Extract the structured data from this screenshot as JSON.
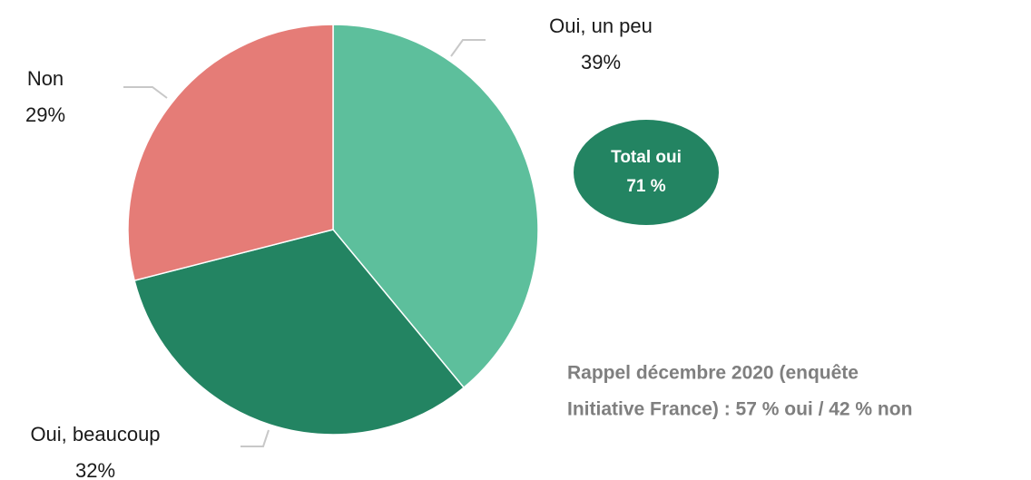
{
  "chart_data": {
    "type": "pie",
    "categories": [
      "Oui, un peu",
      "Oui, beaucoup",
      "Non"
    ],
    "values": [
      39,
      32,
      29
    ],
    "value_labels": [
      "39%",
      "32%",
      "29%"
    ],
    "colors": [
      "#5dbf9c",
      "#238462",
      "#e57c77"
    ],
    "annotations": [
      {
        "lines": [
          "Total oui",
          "71 %"
        ]
      },
      {
        "lines": [
          "Rappel décembre 2020 (enquête",
          "Initiative France) : 57 % oui / 42 % non"
        ]
      }
    ]
  }
}
